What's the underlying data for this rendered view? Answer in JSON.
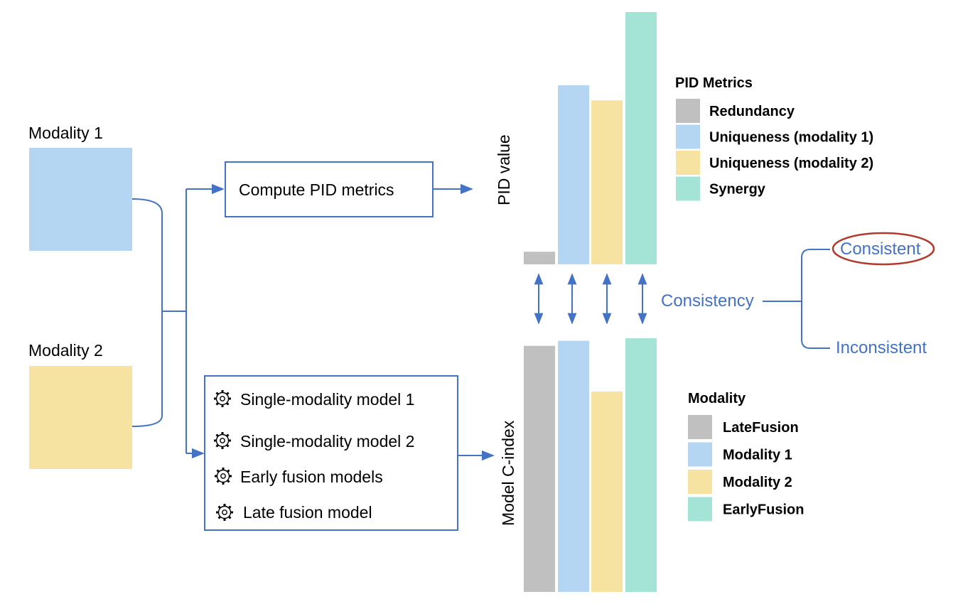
{
  "inputs": {
    "modality1": {
      "label": "Modality 1",
      "color": "#B4D6F2"
    },
    "modality2": {
      "label": "Modality 2",
      "color": "#F7E3A1"
    }
  },
  "pid_box": {
    "label": "Compute PID metrics"
  },
  "models_box": {
    "items": [
      {
        "label": "Single-modality model 1",
        "icon": "gear-icon"
      },
      {
        "label": "Single-modality model 2",
        "icon": "gear-icon"
      },
      {
        "label": "Early fusion models",
        "icon": "gear-icon"
      },
      {
        "label": "Late fusion model",
        "icon": "gear-icon"
      }
    ]
  },
  "pid_chart": {
    "ylabel": "PID value",
    "legend_title": "PID Metrics",
    "items": [
      {
        "name": "Redundancy",
        "color": "#C0C0C0",
        "value": 0.05
      },
      {
        "name": "Uniqueness (modality 1)",
        "color": "#B4D6F2",
        "value": 0.71
      },
      {
        "name": "Uniqueness (modality 2)",
        "color": "#F7E3A1",
        "value": 0.65
      },
      {
        "name": "Synergy",
        "color": "#A4E4D6",
        "value": 1.0
      }
    ]
  },
  "cindex_chart": {
    "ylabel": "Model C-index",
    "legend_title": "Modality",
    "items": [
      {
        "name": "LateFusion",
        "color": "#C0C0C0",
        "value": 0.97
      },
      {
        "name": "Modality 1",
        "color": "#B4D6F2",
        "value": 0.99
      },
      {
        "name": "Modality 2",
        "color": "#F7E3A1",
        "value": 0.79
      },
      {
        "name": "EarlyFusion",
        "color": "#A4E4D6",
        "value": 1.0
      }
    ]
  },
  "consistency": {
    "label": "Consistency",
    "consistent": "Consistent",
    "inconsistent": "Inconsistent"
  },
  "colors": {
    "line": "#4472C4",
    "highlight": "#B03A2E"
  }
}
